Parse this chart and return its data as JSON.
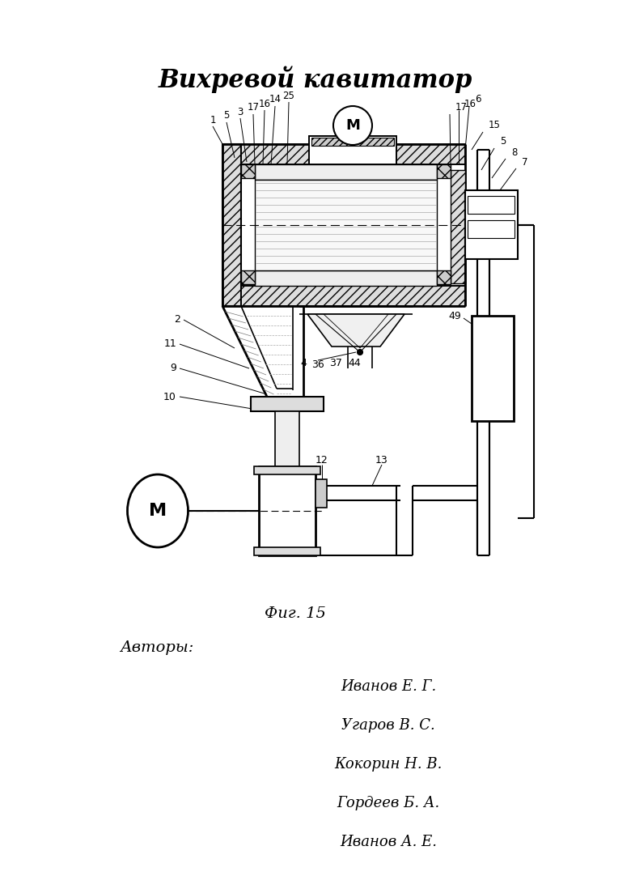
{
  "title": "Вихревой кавитатор",
  "fig_caption": "Фиг. 15",
  "authors_label": "Авторы:",
  "authors": [
    "Иванов Е. Г.",
    "Угаров В. С.",
    "Кокорин Н. В.",
    "Гордеев Б. А.",
    "Иванов А. Е."
  ],
  "bg": "#ffffff",
  "lc": "#000000",
  "title_fs": 22,
  "cap_fs": 14,
  "auth_label_fs": 14,
  "auth_fs": 13
}
